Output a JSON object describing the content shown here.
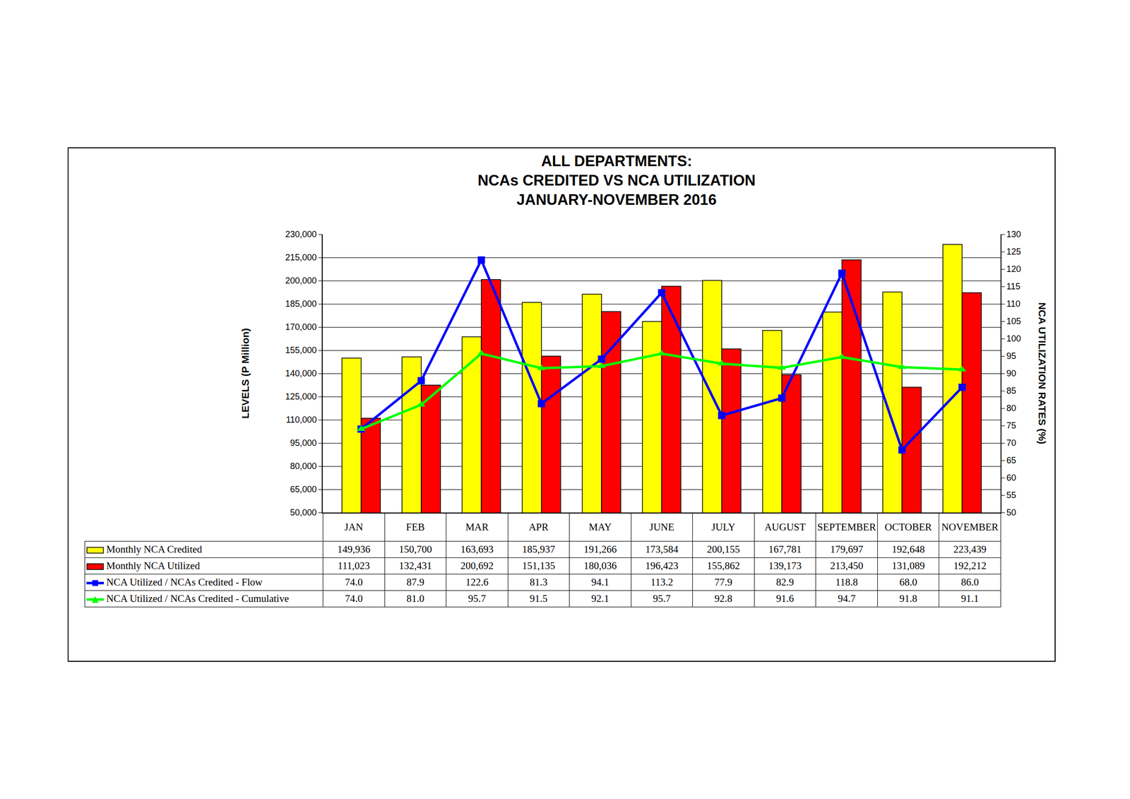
{
  "chart_data": {
    "type": "bar",
    "title": "ALL DEPARTMENTS:\nNCAs CREDITED VS NCA UTILIZATION\nJANUARY-NOVEMBER 2016",
    "y_label": "LEVELS (P Million)",
    "y2_label": "NCA UTILIZATION RATES (%)",
    "categories": [
      "JAN",
      "FEB",
      "MAR",
      "APR",
      "MAY",
      "JUNE",
      "JULY",
      "AUGUST",
      "SEPTEMBER",
      "OCTOBER",
      "NOVEMBER"
    ],
    "series": [
      {
        "name": "Monthly NCA Credited",
        "type": "bar",
        "color": "#ffff00",
        "values": [
          149936,
          150700,
          163693,
          185937,
          191266,
          173584,
          200155,
          167781,
          179697,
          192648,
          223439
        ],
        "value_labels": [
          "149,936",
          "150,700",
          "163,693",
          "185,937",
          "191,266",
          "173,584",
          "200,155",
          "167,781",
          "179,697",
          "192,648",
          "223,439"
        ]
      },
      {
        "name": "Monthly NCA Utilized",
        "type": "bar",
        "color": "#ff0000",
        "values": [
          111023,
          132431,
          200692,
          151135,
          180036,
          196423,
          155862,
          139173,
          213450,
          131089,
          192212
        ],
        "value_labels": [
          "111,023",
          "132,431",
          "200,692",
          "151,135",
          "180,036",
          "196,423",
          "155,862",
          "139,173",
          "213,450",
          "131,089",
          "192,212"
        ]
      },
      {
        "name": "NCA Utilized / NCAs Credited - Flow",
        "type": "line",
        "axis": "y2",
        "color": "#0000ff",
        "marker": "square",
        "values": [
          74.0,
          87.9,
          122.6,
          81.3,
          94.1,
          113.2,
          77.9,
          82.9,
          118.8,
          68.0,
          86.0
        ],
        "value_labels": [
          "74.0",
          "87.9",
          "122.6",
          "81.3",
          "94.1",
          "113.2",
          "77.9",
          "82.9",
          "118.8",
          "68.0",
          "86.0"
        ]
      },
      {
        "name": "NCA Utilized / NCAs Credited - Cumulative",
        "type": "line",
        "axis": "y2",
        "color": "#00ff00",
        "marker": "triangle-up",
        "values": [
          74.0,
          81.0,
          95.7,
          91.5,
          92.1,
          95.7,
          92.8,
          91.6,
          94.7,
          91.8,
          91.1
        ],
        "value_labels": [
          "74.0",
          "81.0",
          "95.7",
          "91.5",
          "92.1",
          "95.7",
          "92.8",
          "91.6",
          "94.7",
          "91.8",
          "91.1"
        ]
      }
    ],
    "ylim": [
      50000,
      230000
    ],
    "yticks": [
      {
        "value": 50000,
        "label": "50,000"
      },
      {
        "value": 65000,
        "label": "65,000"
      },
      {
        "value": 80000,
        "label": "80,000"
      },
      {
        "value": 95000,
        "label": "95,000"
      },
      {
        "value": 110000,
        "label": "110,000"
      },
      {
        "value": 125000,
        "label": "125,000"
      },
      {
        "value": 140000,
        "label": "140,000"
      },
      {
        "value": 155000,
        "label": "155,000"
      },
      {
        "value": 170000,
        "label": "170,000"
      },
      {
        "value": 185000,
        "label": "185,000"
      },
      {
        "value": 200000,
        "label": "200,000"
      },
      {
        "value": 215000,
        "label": "215,000"
      },
      {
        "value": 230000,
        "label": "230,000"
      }
    ],
    "y2lim": [
      50,
      130
    ],
    "y2ticks": [
      50,
      55,
      60,
      65,
      70,
      75,
      80,
      85,
      90,
      95,
      100,
      105,
      110,
      115,
      120,
      125,
      130
    ],
    "grid": true
  }
}
